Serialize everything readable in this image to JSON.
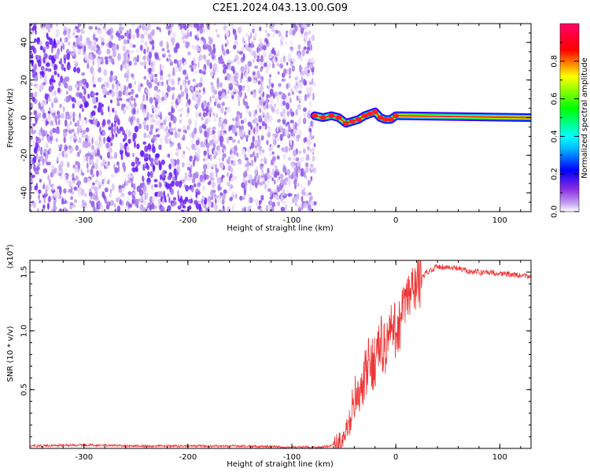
{
  "title": "C2E1.2024.043.13.00.G09",
  "chart_data": [
    {
      "type": "heatmap",
      "xlabel": "Height of straight line (km)",
      "ylabel": "Frequency (Hz)",
      "xlim": [
        -352,
        130
      ],
      "ylim": [
        -50,
        50
      ],
      "x_ticks": [
        -300,
        -200,
        -100,
        0,
        100
      ],
      "y_ticks": [
        -40,
        -20,
        0,
        20,
        40
      ],
      "colorbar": {
        "label": "Normalized spectral amplitude",
        "range": [
          0,
          1
        ],
        "ticks": [
          "0.0",
          "0.2",
          "0.4",
          "0.6",
          "0.8"
        ],
        "colors": [
          "#ffffff",
          "#8a2be2",
          "#0000ff",
          "#00ffff",
          "#00ff00",
          "#ffff00",
          "#ff0000",
          "#ff0066"
        ]
      },
      "noise_region": {
        "x_from": -352,
        "x_to": -78,
        "amplitude": "low (0.0-0.2)",
        "color": "#7b2cf0"
      },
      "signal_trace": {
        "color": "#ff2020",
        "points": [
          [
            -78,
            1
          ],
          [
            -70,
            0
          ],
          [
            -62,
            1
          ],
          [
            -55,
            0
          ],
          [
            -48,
            -3
          ],
          [
            -42,
            -2
          ],
          [
            -36,
            -1
          ],
          [
            -30,
            1
          ],
          [
            -25,
            2
          ],
          [
            -20,
            3
          ],
          [
            -15,
            0
          ],
          [
            -10,
            -1
          ],
          [
            -5,
            -1
          ],
          [
            0,
            1
          ],
          [
            130,
            0
          ]
        ]
      }
    },
    {
      "type": "line",
      "xlabel": "Height of straight line (km)",
      "ylabel": "SNR (10 * v/v)",
      "y_scale_label": "(x10",
      "y_scale_exp": "4",
      "y_scale_close": ")",
      "xlim": [
        -352,
        130
      ],
      "ylim": [
        0,
        1.6
      ],
      "x_ticks": [
        -300,
        -200,
        -100,
        0,
        100
      ],
      "y_ticks": [
        "0.5",
        "1.0",
        "1.5"
      ],
      "series": [
        {
          "color": "#ee3333",
          "x": [
            -352,
            -300,
            -250,
            -200,
            -150,
            -100,
            -70,
            -60,
            -50,
            -45,
            -40,
            -35,
            -30,
            -25,
            -20,
            -15,
            -10,
            -5,
            0,
            5,
            10,
            20,
            30,
            40,
            50,
            60,
            70,
            80,
            90,
            100,
            110,
            120,
            130
          ],
          "y": [
            0.02,
            0.03,
            0.02,
            0.02,
            0.02,
            0.01,
            0.01,
            0.03,
            0.08,
            0.2,
            0.45,
            0.4,
            0.6,
            0.72,
            0.75,
            0.9,
            0.85,
            1.0,
            1.0,
            1.1,
            1.25,
            1.4,
            1.5,
            1.55,
            1.54,
            1.53,
            1.51,
            1.5,
            1.5,
            1.49,
            1.48,
            1.47,
            1.46
          ]
        }
      ]
    }
  ]
}
